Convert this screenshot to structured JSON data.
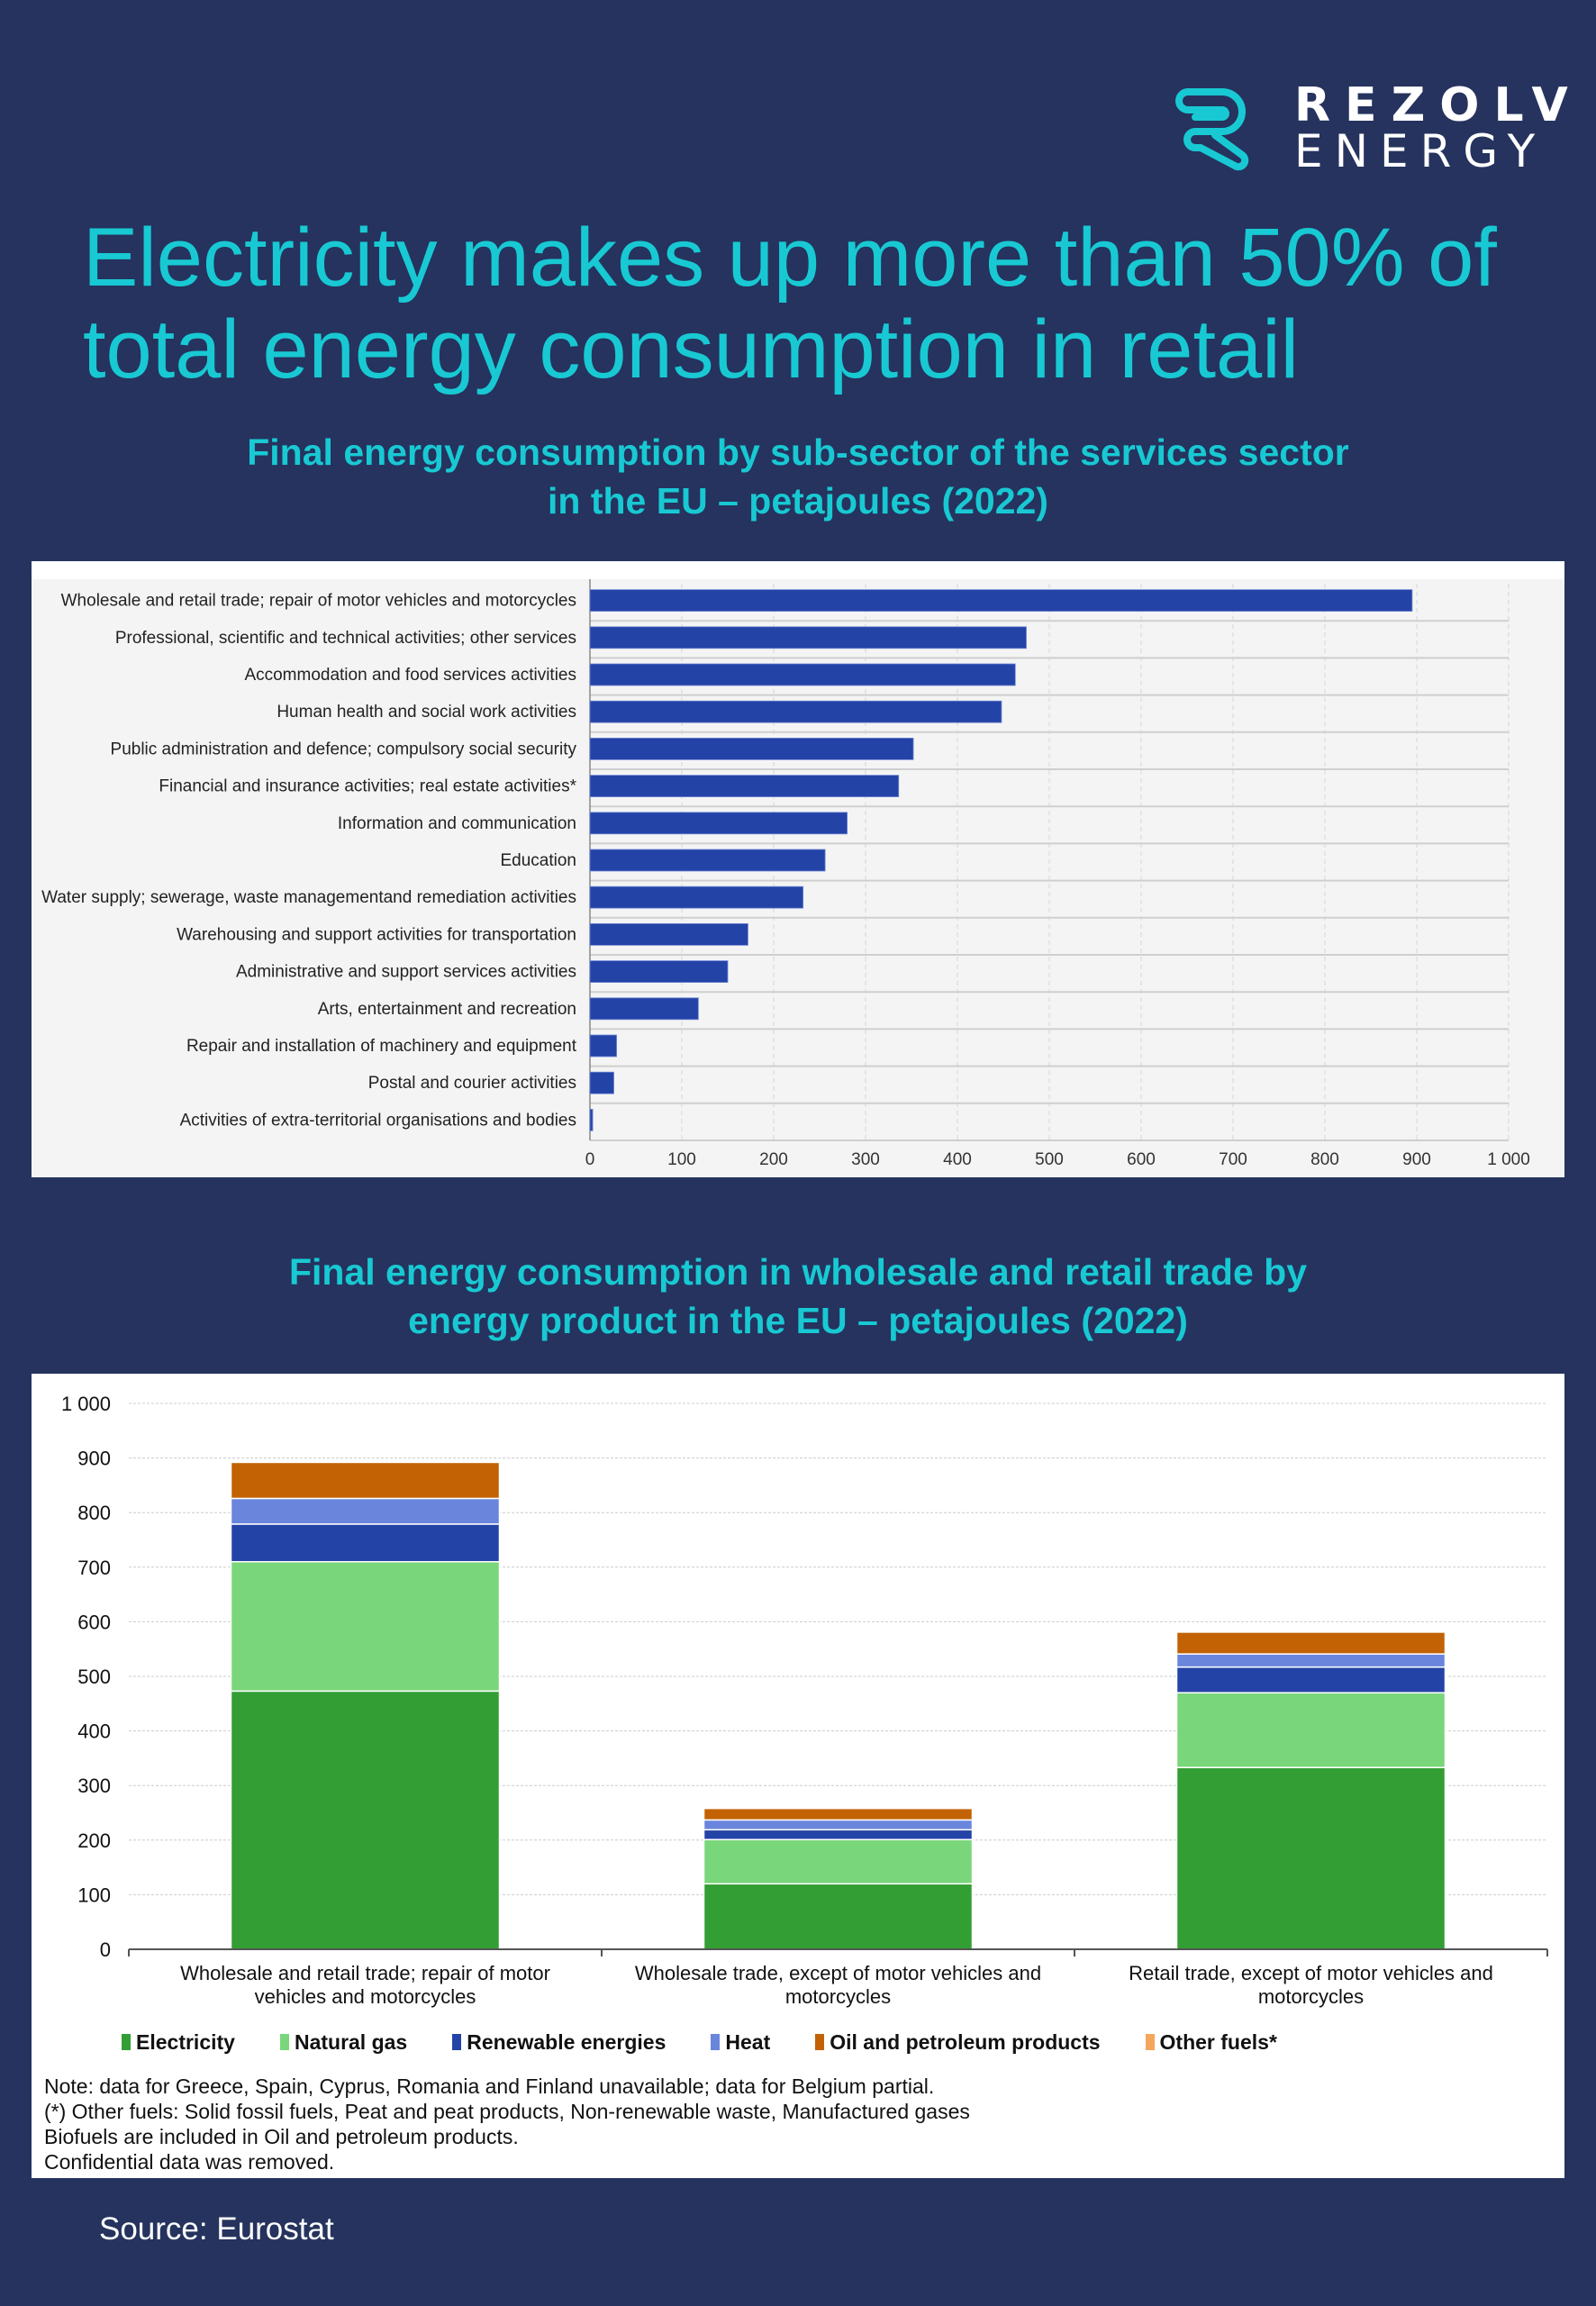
{
  "brand": {
    "name_line1": "REZOLV",
    "name_line2": "ENERGY",
    "logo_icon": "r-monogram-icon",
    "accent_color": "#18c9d3",
    "background_color": "#25335e"
  },
  "headline": {
    "line1": "Electricity makes up more than 50% of",
    "line2": "total energy consumption in retail"
  },
  "chart1_title": {
    "line1": "Final energy consumption by sub-sector of the services sector",
    "line2": "in the EU – petajoules (2022)"
  },
  "chart2_title": {
    "line1": "Final energy consumption in wholesale and retail trade by",
    "line2": "energy product in the EU – petajoules (2022)"
  },
  "chart_data": [
    {
      "type": "bar",
      "orientation": "horizontal",
      "title": "Final energy consumption by sub-sector of the services sector in the EU – petajoules (2022)",
      "xlabel": "",
      "ylabel": "",
      "xlim": [
        0,
        1000
      ],
      "x_ticks": [
        "0",
        "100",
        "200",
        "300",
        "400",
        "500",
        "600",
        "700",
        "800",
        "900",
        "1 000"
      ],
      "x_tick_values": [
        0,
        100,
        200,
        300,
        400,
        500,
        600,
        700,
        800,
        900,
        1000
      ],
      "grid": true,
      "bar_color": "#2443a6",
      "categories": [
        "Wholesale and retail trade; repair of motor vehicles and motorcycles",
        "Professional, scientific and technical activities; other services",
        "Accommodation and food services activities",
        "Human health and social work activities",
        "Public administration and defence; compulsory social security",
        "Financial and insurance activities; real estate activities*",
        "Information and communication",
        "Education",
        "Water supply; sewerage, waste managementand remediation activities",
        "Warehousing and support activities for transportation",
        "Administrative and support services activities",
        "Arts, entertainment and recreation",
        "Repair and installation of machinery and equipment",
        "Postal and courier activities",
        "Activities of extra-territorial organisations and bodies"
      ],
      "values": [
        895,
        475,
        463,
        448,
        352,
        336,
        280,
        256,
        232,
        172,
        150,
        118,
        29,
        26,
        3
      ]
    },
    {
      "type": "bar",
      "stacked": true,
      "title": "Final energy consumption in wholesale and retail trade by energy product in the EU – petajoules (2022)",
      "xlabel": "",
      "ylabel": "",
      "ylim": [
        0,
        1000
      ],
      "y_ticks": [
        "0",
        "100",
        "200",
        "300",
        "400",
        "500",
        "600",
        "700",
        "800",
        "900",
        "1 000"
      ],
      "y_tick_values": [
        0,
        100,
        200,
        300,
        400,
        500,
        600,
        700,
        800,
        900,
        1000
      ],
      "grid": true,
      "legend_position": "bottom",
      "categories": [
        [
          "Wholesale and retail trade; repair of motor",
          "vehicles and motorcycles"
        ],
        [
          "Wholesale trade, except of motor vehicles and",
          "motorcycles"
        ],
        [
          "Retail trade, except of motor vehicles and",
          "motorcycles"
        ]
      ],
      "series": [
        {
          "name": "Electricity",
          "color": "#339e33",
          "values": [
            473,
            120,
            333
          ]
        },
        {
          "name": "Natural gas",
          "color": "#7ad67a",
          "values": [
            237,
            81,
            137
          ]
        },
        {
          "name": "Renewable energies",
          "color": "#2443a6",
          "values": [
            69,
            18,
            47
          ]
        },
        {
          "name": "Heat",
          "color": "#6a85dc",
          "values": [
            47,
            18,
            24
          ]
        },
        {
          "name": "Oil and petroleum products",
          "color": "#c26204",
          "values": [
            66,
            21,
            40
          ]
        },
        {
          "name": "Other fuels*",
          "color": "#f4a65a",
          "values": [
            0,
            0,
            0
          ]
        }
      ]
    }
  ],
  "notes": [
    "Note: data for Greece, Spain,  Cyprus, Romania  and Finland  unavailable;  data for Belgium partial.",
    "(*) Other fuels: Solid fossil fuels, Peat and peat products, Non-renewable  waste, Manufactured gases",
    "Biofuels  are included  in Oil and petroleum  products.",
    "Confidential  data was removed."
  ],
  "source": "Source: Eurostat"
}
